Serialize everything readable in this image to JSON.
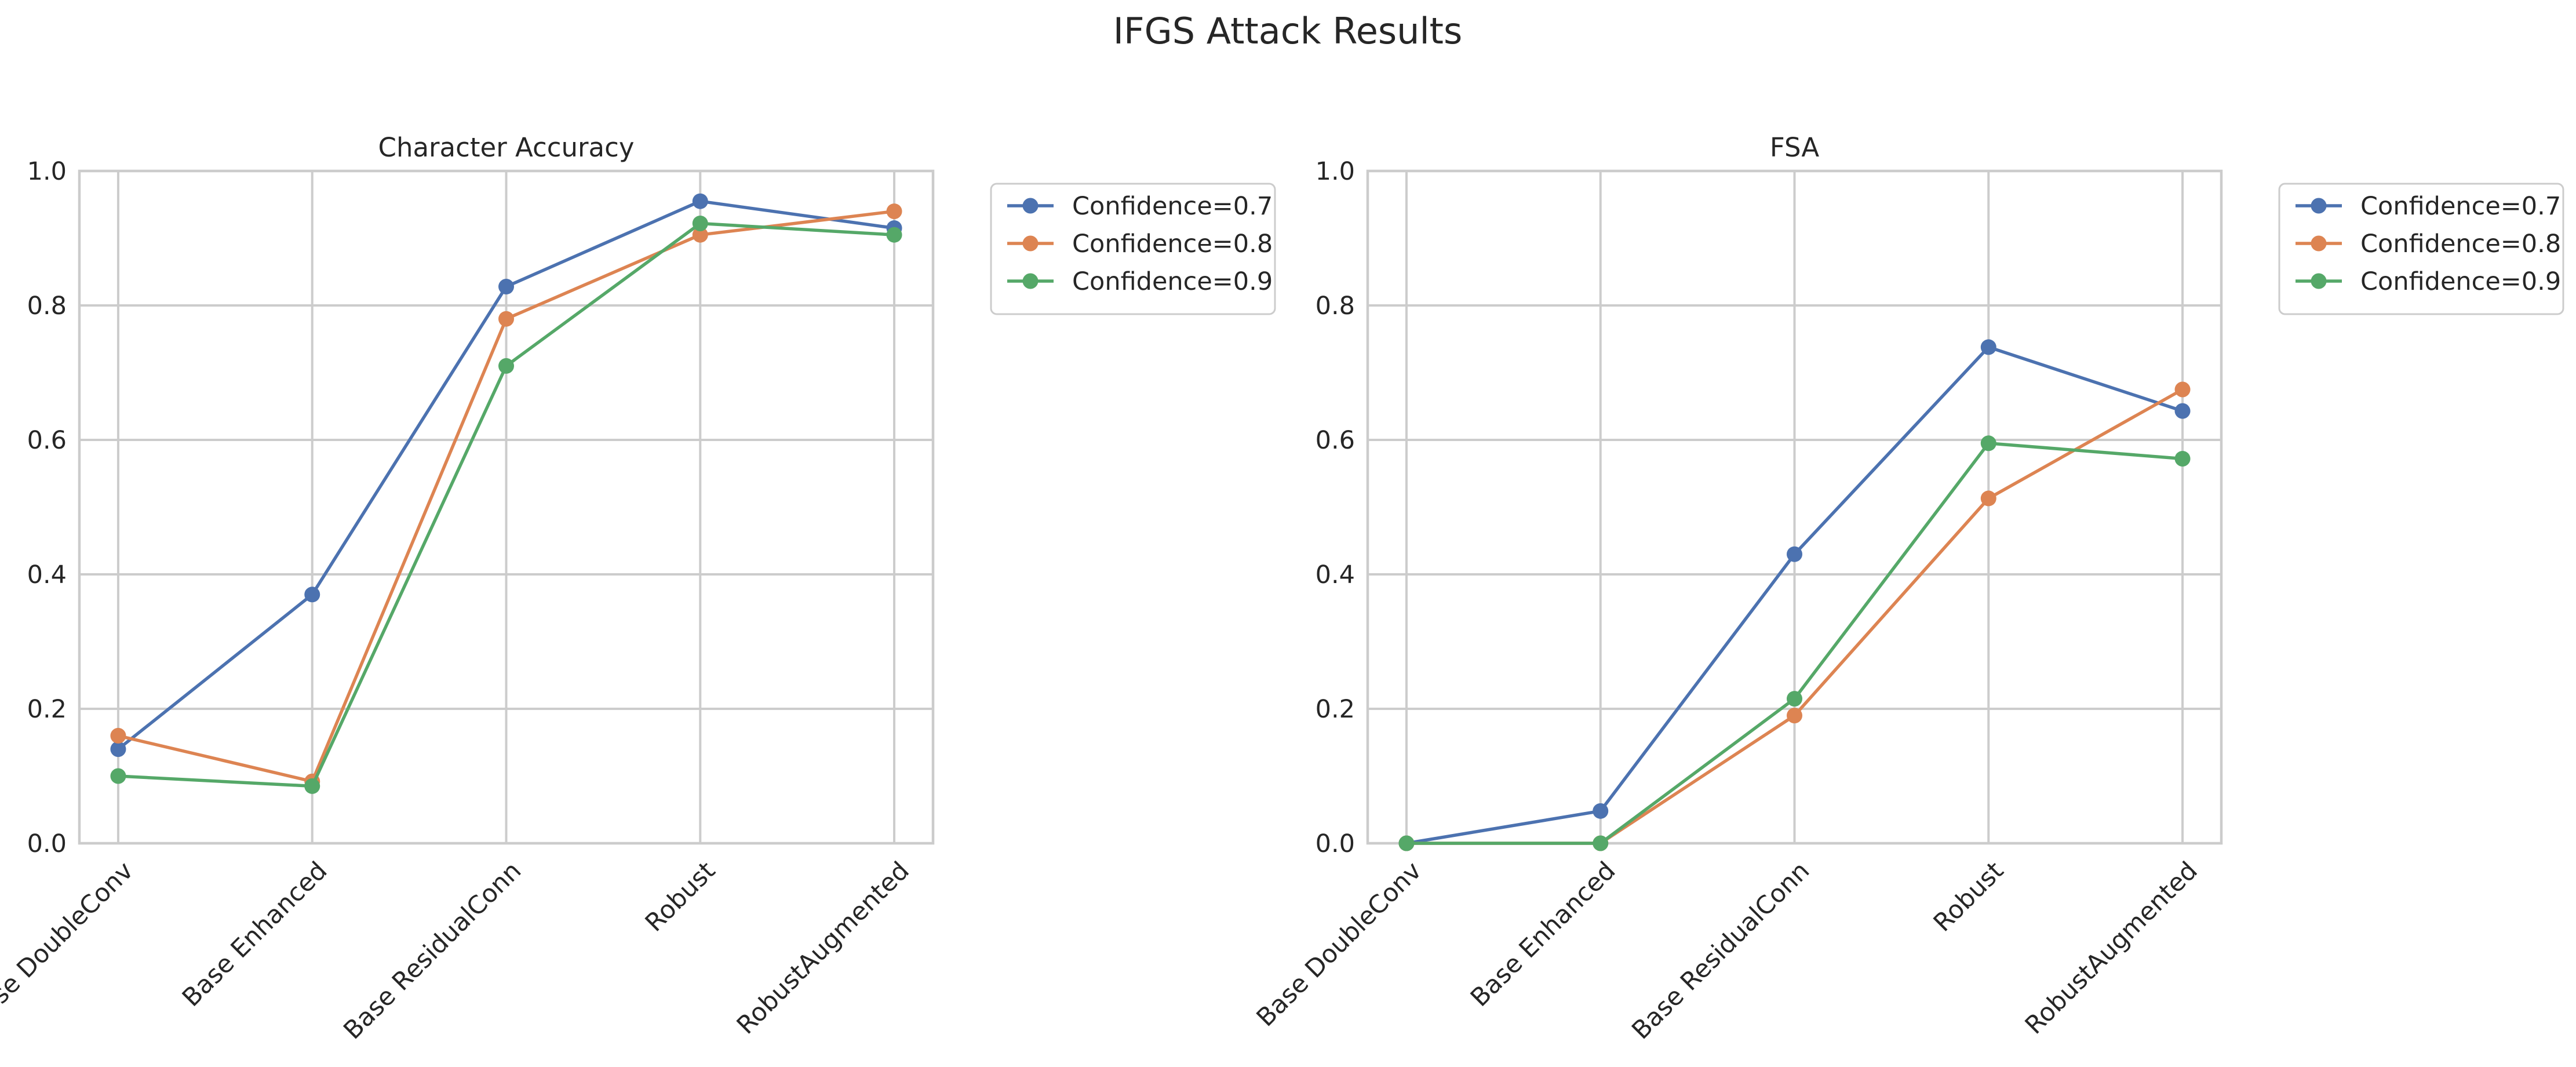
{
  "figure": {
    "title": "IFGS Attack Results"
  },
  "colors": {
    "Confidence=0.7": "#4c72b0",
    "Confidence=0.8": "#dd8452",
    "Confidence=0.9": "#55a868",
    "grid": "#cccccc",
    "spine": "#cccccc",
    "text": "#262626"
  },
  "chart_data": [
    {
      "type": "line",
      "title": "Character Accuracy",
      "xlabel": "",
      "ylabel": "",
      "categories": [
        "Base DoubleConv",
        "Base Enhanced",
        "Base ResidualConn",
        "Robust",
        "RobustAugmented"
      ],
      "ylim": [
        0,
        1.0
      ],
      "yticks": [
        "0.0",
        "0.2",
        "0.4",
        "0.6",
        "0.8",
        "1.0"
      ],
      "grid": true,
      "legend_placement": "outside-upper-right",
      "series": [
        {
          "name": "Confidence=0.7",
          "values": [
            0.14,
            0.37,
            0.828,
            0.955,
            0.915
          ]
        },
        {
          "name": "Confidence=0.8",
          "values": [
            0.16,
            0.092,
            0.78,
            0.905,
            0.94
          ]
        },
        {
          "name": "Confidence=0.9",
          "values": [
            0.1,
            0.085,
            0.71,
            0.922,
            0.905
          ]
        }
      ]
    },
    {
      "type": "line",
      "title": "FSA",
      "xlabel": "",
      "ylabel": "",
      "categories": [
        "Base DoubleConv",
        "Base Enhanced",
        "Base ResidualConn",
        "Robust",
        "RobustAugmented"
      ],
      "ylim": [
        0,
        1.0
      ],
      "yticks": [
        "0.0",
        "0.2",
        "0.4",
        "0.6",
        "0.8",
        "1.0"
      ],
      "grid": true,
      "legend_placement": "outside-upper-right",
      "series": [
        {
          "name": "Confidence=0.7",
          "values": [
            0.0,
            0.048,
            0.43,
            0.738,
            0.643
          ]
        },
        {
          "name": "Confidence=0.8",
          "values": [
            0.0,
            0.0,
            0.19,
            0.513,
            0.675
          ]
        },
        {
          "name": "Confidence=0.9",
          "values": [
            0.0,
            0.0,
            0.215,
            0.595,
            0.572
          ]
        }
      ]
    }
  ]
}
